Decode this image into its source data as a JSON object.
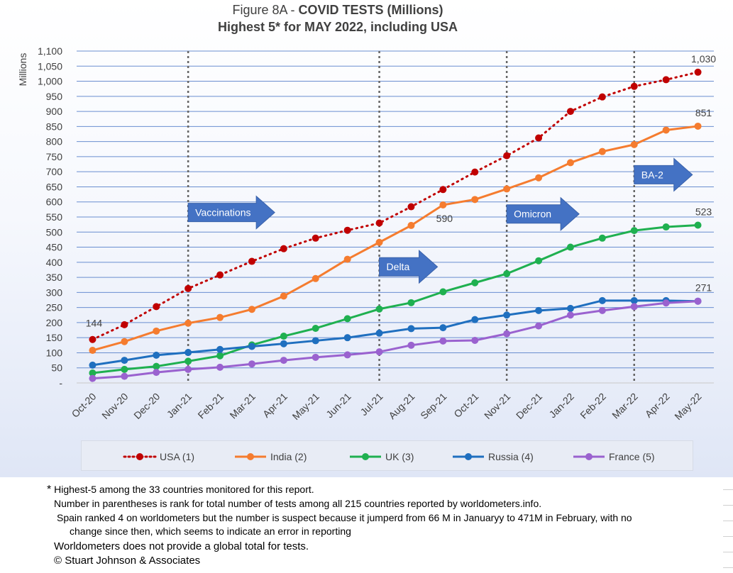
{
  "chart_data": {
    "type": "line",
    "title_prefix": "Figure 8A - ",
    "title_bold": "COVID TESTS (Millions)",
    "subtitle": "Highest 5* for MAY 2022, including USA",
    "ylabel": "Millions",
    "ylim": [
      0,
      1100
    ],
    "ytick_step": 50,
    "ytick_labels": [
      "-",
      "50",
      "100",
      "150",
      "200",
      "250",
      "300",
      "350",
      "400",
      "450",
      "500",
      "550",
      "600",
      "650",
      "700",
      "750",
      "800",
      "850",
      "900",
      "950",
      "1,000",
      "1,050",
      "1,100"
    ],
    "categories": [
      "Oct-20",
      "Nov-20",
      "Dec-20",
      "Jan-21",
      "Feb-21",
      "Mar-21",
      "Apr-21",
      "May-21",
      "Jun-21",
      "Jul-21",
      "Aug-21",
      "Sep-21",
      "Oct-21",
      "Nov-21",
      "Dec-21",
      "Jan-22",
      "Feb-22",
      "Mar-22",
      "Apr-22",
      "May-22"
    ],
    "grid": "horizontal",
    "legend_position": "bottom",
    "series": [
      {
        "name": "USA (1)",
        "color": "#c00000",
        "style": "dotted",
        "values": [
          144,
          193,
          253,
          313,
          358,
          403,
          445,
          480,
          506,
          530,
          584,
          641,
          699,
          753,
          812,
          900,
          948,
          983,
          1005,
          1030
        ]
      },
      {
        "name": "India (2)",
        "color": "#f57c2f",
        "style": "solid",
        "values": [
          108,
          137,
          172,
          198,
          217,
          244,
          288,
          346,
          410,
          466,
          522,
          590,
          608,
          643,
          680,
          730,
          767,
          790,
          838,
          851
        ]
      },
      {
        "name": "UK (3)",
        "color": "#1fb050",
        "style": "solid",
        "values": [
          33,
          45,
          55,
          72,
          90,
          126,
          155,
          181,
          213,
          245,
          266,
          302,
          332,
          362,
          405,
          450,
          480,
          505,
          517,
          523
        ]
      },
      {
        "name": "Russia (4)",
        "color": "#1f6fbf",
        "style": "solid",
        "values": [
          59,
          75,
          92,
          101,
          111,
          121,
          130,
          140,
          150,
          165,
          180,
          183,
          210,
          225,
          240,
          247,
          273,
          273,
          273,
          271
        ]
      },
      {
        "name": "France (5)",
        "color": "#9a62cf",
        "style": "solid",
        "values": [
          15,
          22,
          35,
          45,
          52,
          63,
          75,
          85,
          93,
          103,
          125,
          139,
          141,
          163,
          189,
          225,
          240,
          253,
          265,
          271
        ]
      }
    ],
    "data_labels": [
      {
        "series": 0,
        "index": 0,
        "text": "144"
      },
      {
        "series": 0,
        "index": 19,
        "text": "1,030"
      },
      {
        "series": 1,
        "index": 11,
        "text": "590"
      },
      {
        "series": 1,
        "index": 19,
        "text": "851"
      },
      {
        "series": 2,
        "index": 19,
        "text": "523"
      },
      {
        "series": 4,
        "index": 19,
        "text": "271"
      }
    ],
    "event_markers": [
      {
        "category": "Jan-21",
        "label": "Vaccinations",
        "value": 565
      },
      {
        "category": "Jul-21",
        "label": "Delta",
        "value": 385
      },
      {
        "category": "Nov-21",
        "label": "Omicron",
        "value": 560
      },
      {
        "category": "Mar-22",
        "label": "BA-2",
        "value": 690
      }
    ]
  },
  "notes": {
    "line1_star": "*",
    "line1": " Highest-5 among the 33 countries monitored for this report.",
    "line2": "Number in parentheses is rank for total number of tests among all 215  countries reported by worldometers.info.",
    "line3": "Spain ranked 4 on worldometers but the number is suspect because it jumperd from 66 M in Januaryy to 471M in February, with no",
    "line4": "change since then, which seems to indicate an error in reporting",
    "line5": "Worldometers does not provide a global total for tests.",
    "line6": "© Stuart Johnson & Associates"
  }
}
